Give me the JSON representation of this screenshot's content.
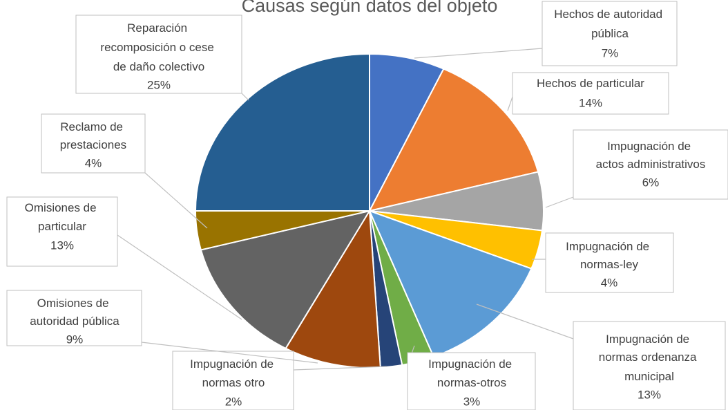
{
  "chart_data": {
    "type": "pie",
    "title": "Causas según datos del objeto",
    "categories": [
      "Hechos de autoridad pública",
      "Hechos de particular",
      "Impugnación de actos administrativos",
      "Impugnación de normas-ley",
      "Impugnación de normas ordenanza municipal",
      "Impugnación de normas-otros",
      "Impugnación de normas otro",
      "Omisiones de autoridad pública",
      "Omisiones de particular",
      "Reclamo de prestaciones",
      "Reparación recomposición o cese de daño colectivo"
    ],
    "values": [
      7,
      14,
      6,
      4,
      13,
      3,
      2,
      9,
      13,
      4,
      25
    ],
    "value_labels": [
      "7%",
      "14%",
      "6%",
      "4%",
      "13%",
      "3%",
      "2%",
      "9%",
      "13%",
      "4%",
      "25%"
    ],
    "colors": [
      "#4472c4",
      "#ed7d31",
      "#a5a5a5",
      "#ffc000",
      "#5b9bd5",
      "#70ad47",
      "#264478",
      "#9e480e",
      "#636363",
      "#997300",
      "#255e91"
    ]
  }
}
